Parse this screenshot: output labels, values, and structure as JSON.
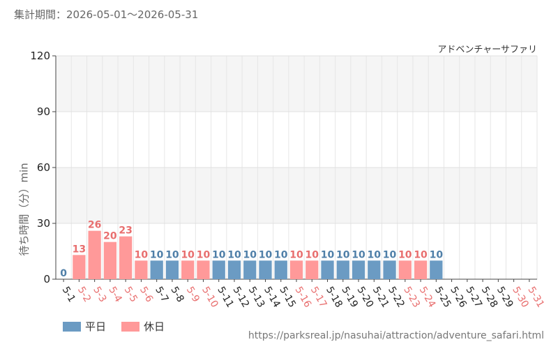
{
  "header": {
    "period_label": "集計期間：2026-05-01～2026-05-31"
  },
  "colors": {
    "weekday": "#6b9bc3",
    "holiday": "#ff9999",
    "weekday_text": "#4f7fa8",
    "holiday_text": "#e86e6e"
  },
  "legend": {
    "weekday_label": "平日",
    "holiday_label": "休日"
  },
  "footer": {
    "source_url": "https://parksreal.jp/nasuhai/attraction/adventure_safari.html"
  },
  "chart_data": {
    "type": "bar",
    "subtitle": "アドベンチャーサファリ",
    "ylabel": "待ち時間（分）min",
    "ylim": [
      0,
      120
    ],
    "yticks": [
      0,
      30,
      60,
      90,
      120
    ],
    "grid": true,
    "legend_position": "bottom-left",
    "categories": [
      "5-1",
      "5-2",
      "5-3",
      "5-4",
      "5-5",
      "5-6",
      "5-7",
      "5-8",
      "5-9",
      "5-10",
      "5-11",
      "5-12",
      "5-13",
      "5-14",
      "5-15",
      "5-16",
      "5-17",
      "5-18",
      "5-19",
      "5-20",
      "5-21",
      "5-22",
      "5-23",
      "5-24",
      "5-25",
      "5-26",
      "5-27",
      "5-28",
      "5-29",
      "5-30",
      "5-31"
    ],
    "values": [
      0,
      13,
      26,
      20,
      23,
      10,
      10,
      10,
      10,
      10,
      10,
      10,
      10,
      10,
      10,
      10,
      10,
      10,
      10,
      10,
      10,
      10,
      10,
      10,
      10,
      null,
      null,
      null,
      null,
      null,
      null
    ],
    "day_type": [
      "weekday",
      "holiday",
      "holiday",
      "holiday",
      "holiday",
      "holiday",
      "weekday",
      "weekday",
      "holiday",
      "holiday",
      "weekday",
      "weekday",
      "weekday",
      "weekday",
      "weekday",
      "holiday",
      "holiday",
      "weekday",
      "weekday",
      "weekday",
      "weekday",
      "weekday",
      "holiday",
      "holiday",
      "weekday",
      "weekday",
      "weekday",
      "weekday",
      "weekday",
      "holiday",
      "holiday"
    ]
  }
}
